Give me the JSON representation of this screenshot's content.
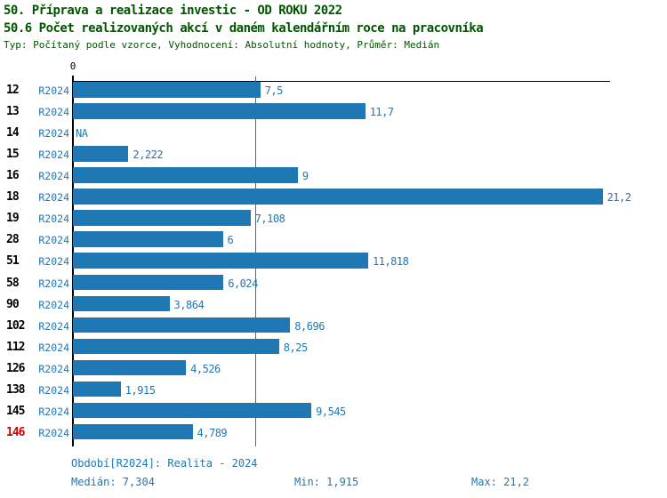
{
  "header": {
    "title": "50. Příprava a realizace investic - OD ROKU 2022",
    "subtitle": "50.6 Počet realizovaných akcí v daném kalendářním roce na pracovníka",
    "meta": "Typ: Počítaný podle vzorce, Vyhodnocení: Absolutní hodnoty, Průměr: Medián"
  },
  "chart_data": {
    "type": "bar",
    "orientation": "horizontal",
    "title": "50. Příprava a realizace investic - OD ROKU 2022",
    "subtitle": "50.6 Počet realizovaných akcí v daném kalendářním roce na pracovníka",
    "categories": [
      "12",
      "13",
      "14",
      "15",
      "16",
      "18",
      "19",
      "28",
      "51",
      "58",
      "90",
      "102",
      "112",
      "126",
      "138",
      "145",
      "146"
    ],
    "series": [
      {
        "name": "R2024",
        "values": [
          7.5,
          11.7,
          null,
          2.222,
          9,
          21.2,
          7.108,
          6,
          11.818,
          6.024,
          3.864,
          8.696,
          8.25,
          4.526,
          1.915,
          9.545,
          4.789
        ]
      }
    ],
    "value_labels": [
      "7,5",
      "11,7",
      "NA",
      "2,222",
      "9",
      "21,2",
      "7,108",
      "6",
      "11,818",
      "6,024",
      "3,864",
      "8,696",
      "8,25",
      "4,526",
      "1,915",
      "9,545",
      "4,789"
    ],
    "highlighted_category": "146",
    "x_tick_labels": [
      "0"
    ],
    "xlim": [
      0,
      21.5
    ],
    "grid": false,
    "legend": "none",
    "median_line": 7.304,
    "stats": {
      "median": 7.304,
      "min": 1.915,
      "max": 21.2
    }
  },
  "footer": {
    "period": "Období[R2024]: Realita - 2024",
    "median": "Medián: 7,304",
    "min": "Min: 1,915",
    "max": "Max: 21,2"
  },
  "colors": {
    "bar": "#1f77b4",
    "median_line": "#1f77b4",
    "value_label": "#1f77b4",
    "row_label": "#000000",
    "highlight_label": "#cc0000",
    "title": "#005500",
    "footer": "#1f77b4",
    "axis": "#000000"
  }
}
